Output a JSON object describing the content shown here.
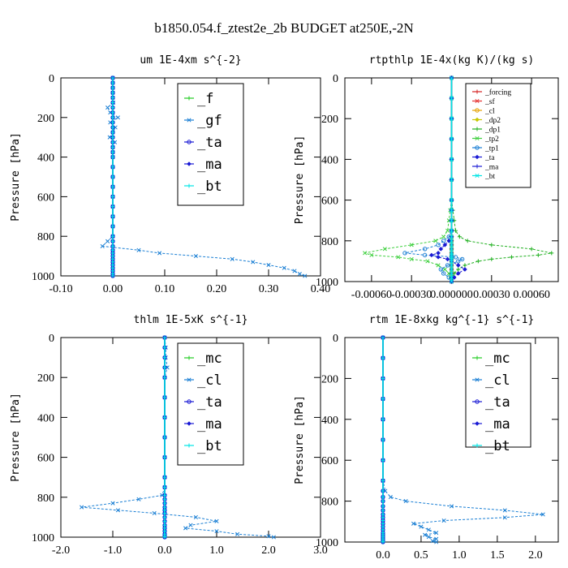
{
  "figure": {
    "title": "b1850.054.f_ztest2e_2b  BUDGET at250E,-2N"
  },
  "chart_data": [
    {
      "type": "line",
      "title": "um  1E-4xm s^{-2}",
      "ylabel": "Pressure [hPa]",
      "ylim": [
        1000,
        0
      ],
      "yticks": [
        "0",
        "200",
        "400",
        "600",
        "800",
        "1000"
      ],
      "xlim": [
        -0.1,
        0.4
      ],
      "xticks": [
        "-0.10",
        "0.00",
        "0.10",
        "0.20",
        "0.30",
        "0.40"
      ],
      "xtick_values": [
        -0.1,
        0.0,
        0.1,
        0.2,
        0.3,
        0.4
      ],
      "legend_position": "top-right",
      "legend_style": "large",
      "pressure": [
        0,
        25,
        50,
        75,
        100,
        125,
        150,
        175,
        200,
        225,
        250,
        275,
        300,
        325,
        350,
        375,
        400,
        450,
        500,
        550,
        600,
        650,
        700,
        750,
        800,
        825,
        850,
        870,
        885,
        900,
        915,
        930,
        945,
        960,
        975,
        990,
        1000
      ],
      "series": [
        {
          "name": "_f",
          "color": "#22cc22",
          "values": [
            0,
            0,
            0,
            0,
            0,
            0,
            0,
            0,
            0,
            0,
            0,
            0,
            0,
            0,
            0,
            0,
            0,
            0,
            0,
            0,
            0,
            0,
            0,
            0,
            0,
            0,
            0,
            0,
            0,
            0,
            0,
            0,
            0,
            0,
            0,
            0,
            0
          ]
        },
        {
          "name": "_gf",
          "color": "#1a7fd4",
          "values": [
            0,
            0,
            0,
            0,
            0,
            0.001,
            -0.01,
            -0.005,
            0.01,
            -0.005,
            0.005,
            0,
            -0.006,
            0.004,
            0,
            0,
            0,
            0,
            0,
            0,
            0,
            0,
            0,
            0,
            0,
            -0.01,
            -0.02,
            0.05,
            0.09,
            0.16,
            0.23,
            0.27,
            0.3,
            0.33,
            0.35,
            0.36,
            0.37
          ]
        },
        {
          "name": "_ta",
          "color": "#1a1ad4",
          "values": [
            0,
            0,
            0,
            0,
            0,
            0,
            0,
            0,
            0,
            0,
            0,
            0,
            0,
            0,
            0,
            0,
            0,
            0,
            0,
            0,
            0,
            0,
            0,
            0,
            0,
            0,
            0,
            0,
            0,
            0,
            0,
            0,
            0,
            0,
            0,
            0,
            0
          ]
        },
        {
          "name": "_ma",
          "color": "#1a1ad4",
          "values": [
            0,
            0,
            0,
            0,
            0,
            0,
            0,
            0,
            0,
            0,
            0,
            0,
            0,
            0,
            0,
            0,
            0,
            0,
            0,
            0,
            0,
            0,
            0,
            0,
            0,
            0,
            0,
            0,
            0,
            0,
            0,
            0,
            0,
            0,
            0,
            0,
            0
          ]
        },
        {
          "name": "_bt",
          "color": "#00e5e5",
          "values": [
            0,
            0,
            0,
            0,
            0,
            0,
            0,
            0,
            0,
            0,
            0,
            0,
            0,
            0,
            0,
            0,
            0,
            0,
            0,
            0,
            0,
            0,
            0,
            0,
            0,
            0,
            0,
            0,
            0,
            0,
            0,
            0,
            0,
            0,
            0,
            0,
            0
          ]
        }
      ]
    },
    {
      "type": "line",
      "title": "rtpthlp  1E-4x(kg K)/(kg s)",
      "ylabel": "Pressure [hPa]",
      "ylim": [
        1000,
        0
      ],
      "yticks": [
        "0",
        "200",
        "400",
        "600",
        "800",
        "1000"
      ],
      "xlim": [
        -0.0008,
        0.0008
      ],
      "xticks": [
        "-0.00060",
        "-0.00030",
        "0.000000",
        "0.00030",
        "0.00060"
      ],
      "xtick_values": [
        -0.0006,
        -0.0003,
        0.0,
        0.0003,
        0.0006
      ],
      "legend_position": "top-right",
      "legend_style": "small",
      "pressure": [
        0,
        100,
        200,
        300,
        400,
        500,
        600,
        650,
        700,
        750,
        780,
        800,
        820,
        840,
        860,
        870,
        880,
        890,
        900,
        920,
        940,
        960,
        980,
        1000
      ],
      "series": [
        {
          "name": "_forcing",
          "color": "#d42020",
          "values": [
            0,
            0,
            0,
            0,
            0,
            0,
            0,
            0,
            0,
            0,
            0,
            0,
            0,
            0,
            0,
            0,
            0,
            0,
            0,
            0,
            0,
            0,
            0,
            0
          ]
        },
        {
          "name": "_sf",
          "color": "#e53030",
          "values": [
            0,
            0,
            0,
            0,
            0,
            0,
            0,
            0,
            0,
            0,
            0,
            0,
            0,
            0,
            0,
            0,
            0,
            0,
            0,
            0,
            0,
            0,
            0,
            0
          ]
        },
        {
          "name": "_cl",
          "color": "#e5a000",
          "values": [
            0,
            0,
            0,
            0,
            0,
            0,
            0,
            0,
            0,
            0,
            0,
            0,
            0,
            0,
            0,
            0,
            0,
            0,
            0,
            0,
            0,
            0,
            0,
            0
          ]
        },
        {
          "name": "_dp2",
          "color": "#c8c800",
          "values": [
            0,
            0,
            0,
            0,
            0,
            0,
            0,
            0,
            0,
            0,
            0,
            0,
            0,
            0,
            0,
            0,
            0,
            0,
            0,
            0,
            0,
            0,
            0,
            0
          ]
        },
        {
          "name": "_dp1",
          "color": "#20b020",
          "values": [
            0,
            0,
            0,
            0,
            0,
            0,
            0,
            1e-05,
            2e-05,
            3e-05,
            6e-05,
            0.00012,
            0.0003,
            0.0006,
            0.00075,
            0.00065,
            0.00045,
            0.0003,
            0.0002,
            0.0001,
            5e-05,
            2e-05,
            1e-05,
            0
          ]
        },
        {
          "name": "_tp2",
          "color": "#40d040",
          "values": [
            0,
            0,
            0,
            0,
            0,
            0,
            0,
            -1e-05,
            -2e-05,
            -3e-05,
            -6e-05,
            -0.00012,
            -0.0003,
            -0.0005,
            -0.00065,
            -0.0006,
            -0.0004,
            -0.0003,
            -0.00018,
            -0.0001,
            -5e-05,
            -2e-05,
            -1e-05,
            0
          ]
        },
        {
          "name": "_tp1",
          "color": "#1a7fd4",
          "values": [
            0,
            0,
            0,
            0,
            0,
            0,
            0,
            0,
            0,
            0,
            -2e-05,
            -6e-05,
            -0.0001,
            -0.0002,
            -0.00035,
            -0.0002,
            3e-05,
            8e-05,
            5e-05,
            -3e-05,
            -8e-05,
            -6e-05,
            -2e-05,
            0
          ]
        },
        {
          "name": "_ta",
          "color": "#1a1ad4",
          "values": [
            0,
            0,
            0,
            0,
            0,
            0,
            0,
            0,
            0,
            0,
            0,
            -2e-05,
            -5e-05,
            -8e-05,
            -0.0001,
            -0.00015,
            -0.0001,
            -3e-05,
            0,
            5e-05,
            0.0001,
            5e-05,
            2e-05,
            0
          ]
        },
        {
          "name": "_ma",
          "color": "#1a1ad4",
          "values": [
            0,
            0,
            0,
            0,
            0,
            0,
            0,
            0,
            0,
            0,
            0,
            0,
            0,
            0,
            0,
            0,
            0,
            0,
            0,
            0,
            0,
            0,
            0,
            0
          ]
        },
        {
          "name": "_bt",
          "color": "#00e5e5",
          "values": [
            0,
            0,
            0,
            0,
            0,
            0,
            0,
            0,
            0,
            0,
            0,
            0,
            0,
            0,
            0,
            0,
            0,
            0,
            0,
            0,
            0,
            0,
            0,
            0
          ]
        }
      ]
    },
    {
      "type": "line",
      "title": "thlm  1E-5xK s^{-1}",
      "ylabel": "Pressure [hPa]",
      "ylim": [
        1000,
        0
      ],
      "yticks": [
        "0",
        "200",
        "400",
        "600",
        "800",
        "1000"
      ],
      "xlim": [
        -2.0,
        3.0
      ],
      "xticks": [
        "-2.0",
        "-1.0",
        "0.0",
        "1.0",
        "2.0",
        "3.0"
      ],
      "xtick_values": [
        -2.0,
        -1.0,
        0.0,
        1.0,
        2.0,
        3.0
      ],
      "legend_position": "top-right",
      "legend_style": "large",
      "pressure": [
        0,
        50,
        100,
        150,
        200,
        300,
        400,
        500,
        600,
        700,
        750,
        790,
        810,
        830,
        850,
        865,
        880,
        900,
        920,
        940,
        955,
        970,
        985,
        995,
        1000
      ],
      "series": [
        {
          "name": "_mc",
          "color": "#22cc22",
          "values": [
            0,
            0,
            0,
            0,
            0,
            0,
            0,
            0,
            0,
            0,
            0,
            0,
            0,
            0,
            0,
            0,
            0,
            0,
            0,
            0,
            0,
            0,
            0,
            0,
            0
          ]
        },
        {
          "name": "_cl",
          "color": "#1a7fd4",
          "values": [
            0,
            0.02,
            0.02,
            0.05,
            0,
            0,
            0,
            0,
            0,
            0,
            0,
            -0.05,
            -0.5,
            -1.0,
            -1.6,
            -0.9,
            -0.2,
            0.6,
            1.0,
            0.5,
            0.4,
            1.0,
            1.4,
            2.0,
            2.1
          ]
        },
        {
          "name": "_ta",
          "color": "#1a1ad4",
          "values": [
            0,
            0,
            0,
            0,
            0,
            0,
            0,
            0,
            0,
            0,
            0,
            0,
            0,
            0,
            0,
            0,
            0,
            0,
            0,
            0,
            0,
            0,
            0,
            0,
            0
          ]
        },
        {
          "name": "_ma",
          "color": "#1a1ad4",
          "values": [
            0,
            0,
            0,
            0,
            0,
            0,
            0,
            0,
            0,
            0,
            0,
            0,
            0,
            0,
            0,
            0,
            0,
            0,
            0,
            0,
            0,
            0,
            0,
            0,
            0
          ]
        },
        {
          "name": "_bt",
          "color": "#00e5e5",
          "values": [
            0,
            0,
            0,
            0,
            0,
            0,
            0,
            0,
            0,
            0,
            0,
            0,
            0,
            0,
            0,
            0,
            0,
            0,
            0,
            0,
            0,
            0,
            0,
            0,
            0
          ]
        }
      ]
    },
    {
      "type": "line",
      "title": "rtm  1E-8xkg kg^{-1} s^{-1}",
      "ylabel": "Pressure [hPa]",
      "ylim": [
        1000,
        0
      ],
      "yticks": [
        "0",
        "200",
        "400",
        "600",
        "800",
        "1000"
      ],
      "xlim": [
        -0.5,
        2.3
      ],
      "xticks": [
        "0.0",
        "0.5",
        "1.0",
        "1.5",
        "2.0"
      ],
      "xtick_values": [
        0.0,
        0.5,
        1.0,
        1.5,
        2.0
      ],
      "legend_position": "top-right",
      "legend_style": "large",
      "pressure": [
        0,
        100,
        200,
        300,
        400,
        500,
        600,
        700,
        750,
        780,
        800,
        825,
        845,
        865,
        880,
        895,
        910,
        925,
        940,
        955,
        965,
        975,
        985,
        995,
        1000
      ],
      "series": [
        {
          "name": "_mc",
          "color": "#22cc22",
          "values": [
            0,
            0,
            0,
            0,
            0,
            0,
            0,
            0,
            0,
            0,
            0,
            0,
            0,
            0,
            0,
            0,
            0,
            0,
            0,
            0,
            0,
            0,
            0,
            0,
            0
          ]
        },
        {
          "name": "_cl",
          "color": "#1a7fd4",
          "values": [
            0,
            0,
            0,
            0,
            0,
            0,
            0,
            0,
            0.03,
            0.1,
            0.3,
            0.9,
            1.6,
            2.1,
            1.6,
            0.8,
            0.4,
            0.5,
            0.6,
            0.7,
            0.55,
            0.6,
            0.7,
            0.65,
            0.7
          ]
        },
        {
          "name": "_ta",
          "color": "#1a1ad4",
          "values": [
            0,
            0,
            0,
            0,
            0,
            0,
            0,
            0,
            0,
            0,
            0,
            0,
            0,
            0,
            0,
            0,
            0,
            0,
            0,
            0,
            0,
            0,
            0,
            0,
            0
          ]
        },
        {
          "name": "_ma",
          "color": "#1a1ad4",
          "values": [
            0,
            0,
            0,
            0,
            0,
            0,
            0,
            0,
            0,
            0,
            0,
            0,
            0,
            0,
            0,
            0,
            0,
            0,
            0,
            0,
            0,
            0,
            0,
            0,
            0
          ]
        },
        {
          "name": "_bt",
          "color": "#00e5e5",
          "values": [
            0,
            0,
            0,
            0,
            0,
            0,
            0,
            0,
            0,
            0,
            0,
            0,
            0,
            0,
            0,
            0,
            0,
            0,
            0,
            0,
            0,
            0,
            0,
            0,
            0
          ]
        }
      ]
    }
  ]
}
